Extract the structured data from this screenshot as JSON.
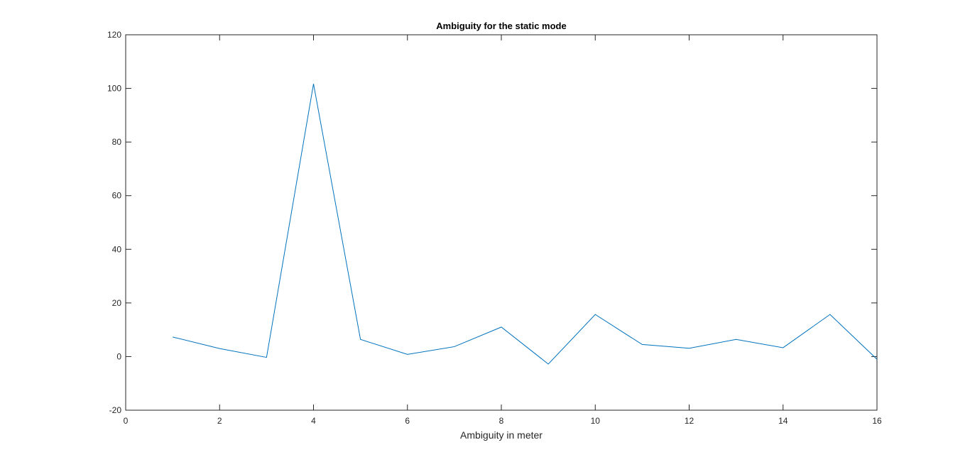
{
  "chart_data": {
    "type": "line",
    "title": "Ambiguity for the static mode",
    "xlabel": "Ambiguity in meter",
    "ylabel": "",
    "xlim": [
      0,
      16
    ],
    "ylim": [
      -20,
      120
    ],
    "xticks": [
      0,
      2,
      4,
      6,
      8,
      10,
      12,
      14,
      16
    ],
    "yticks": [
      -20,
      0,
      20,
      40,
      60,
      80,
      100,
      120
    ],
    "grid": false,
    "series": [
      {
        "color": "#0072BD",
        "x": [
          1,
          2,
          3,
          4,
          5,
          6,
          7,
          8,
          9,
          10,
          11,
          12,
          13,
          14,
          15,
          16
        ],
        "y": [
          7.3,
          3.0,
          -0.3,
          101.7,
          6.4,
          0.8,
          3.7,
          11.0,
          -2.8,
          15.7,
          4.5,
          3.1,
          6.4,
          3.3,
          15.7,
          -1.0
        ]
      }
    ]
  }
}
